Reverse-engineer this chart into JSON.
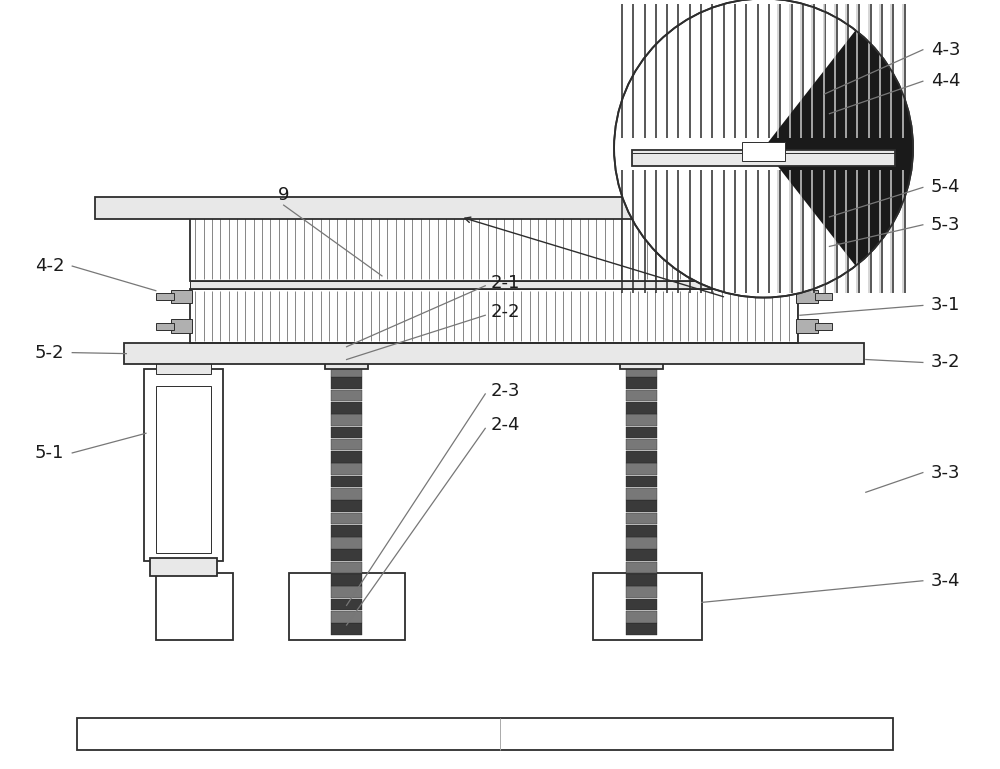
{
  "bg_color": "#ffffff",
  "line_color": "#2d2d2d",
  "fill_light": "#e8e8e8",
  "fill_medium": "#b0b0b0",
  "fill_dark": "#555555"
}
